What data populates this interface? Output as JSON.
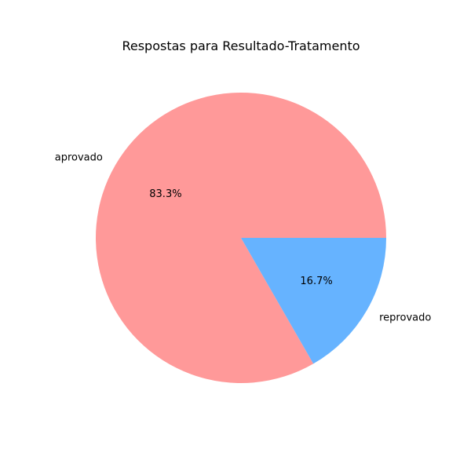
{
  "chart_data": {
    "type": "pie",
    "title": "Respostas para Resultado-Tratamento",
    "slices": [
      {
        "label": "aprovado",
        "value": 83.3,
        "pct_label": "83.3%",
        "color": "#ff9999"
      },
      {
        "label": "reprovado",
        "value": 16.7,
        "pct_label": "16.7%",
        "color": "#66b3ff"
      }
    ],
    "start_angle_deg": 0,
    "direction": "counterclockwise",
    "legend": false
  }
}
